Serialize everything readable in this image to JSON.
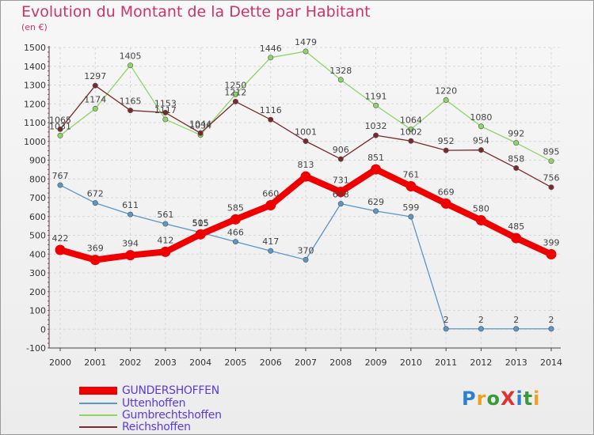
{
  "title": "Evolution du Montant de la Dette par Habitant",
  "subtitle": "(en €)",
  "logo": {
    "text": "ProXiti",
    "colors": [
      "#2d7fd0",
      "#f0a020",
      "#3a9a3a",
      "#e03030",
      "#2d7fd0",
      "#3a9a3a",
      "#f0a020"
    ]
  },
  "chart_data": {
    "type": "line",
    "title": "Evolution du Montant de la Dette par Habitant",
    "ylabel": "(en €)",
    "x": [
      "2000",
      "2001",
      "2002",
      "2003",
      "2004",
      "2005",
      "2006",
      "2007",
      "2008",
      "2009",
      "2010",
      "2011",
      "2012",
      "2013",
      "2014"
    ],
    "yticks": [
      "1500",
      "1400",
      "1300",
      "1200",
      "1100",
      "1000",
      "900",
      "800",
      "700",
      "600",
      "500",
      "400",
      "300",
      "200",
      "100",
      "0",
      "-100"
    ],
    "ylim": [
      -100,
      1500
    ],
    "grid": true,
    "legend_position": "bottom-left",
    "series": [
      {
        "name": "Uttenhoffen",
        "color": "#5a96c8",
        "values": [
          767,
          672,
          611,
          561,
          515,
          466,
          417,
          370,
          668,
          629,
          599,
          2,
          2,
          2,
          2
        ],
        "labels": [
          "767",
          "672",
          "611",
          "561",
          "515",
          "466",
          "417",
          "370",
          "668",
          "629",
          "599",
          "2",
          "2",
          "2",
          "2"
        ]
      },
      {
        "name": "Gumbrechtshoffen",
        "color": "#8fd46a",
        "values": [
          1031,
          1174,
          1405,
          1117,
          1034,
          1250,
          1446,
          1479,
          1328,
          1191,
          1064,
          1220,
          1080,
          992,
          895
        ],
        "labels": [
          "1031",
          "1174",
          "1405",
          "1117",
          "1034",
          "1250",
          "1446",
          "1479",
          "1328",
          "1191",
          "1064",
          "1220",
          "1080",
          "992",
          "895"
        ]
      },
      {
        "name": "Reichshoffen",
        "color": "#7a2a2a",
        "values": [
          1065,
          1297,
          1165,
          1153,
          1044,
          1212,
          1116,
          1001,
          906,
          1032,
          1002,
          952,
          954,
          858,
          756
        ],
        "labels": [
          "1065",
          "1297",
          "1165",
          "1153",
          "1044",
          "1212",
          "1116",
          "1001",
          "906",
          "1032",
          "1002",
          "952",
          "954",
          "858",
          "756"
        ]
      },
      {
        "name": "GUNDERSHOFFEN",
        "color": "#ee0000",
        "values": [
          422,
          369,
          394,
          412,
          505,
          585,
          660,
          813,
          731,
          851,
          761,
          669,
          580,
          485,
          399
        ],
        "labels": [
          "422",
          "369",
          "394",
          "412",
          "505",
          "585",
          "660",
          "813",
          "731",
          "851",
          "761",
          "669",
          "580",
          "485",
          "399"
        ]
      }
    ],
    "legend_order": [
      "GUNDERSHOFFEN",
      "Uttenhoffen",
      "Gumbrechtshoffen",
      "Reichshoffen"
    ]
  }
}
